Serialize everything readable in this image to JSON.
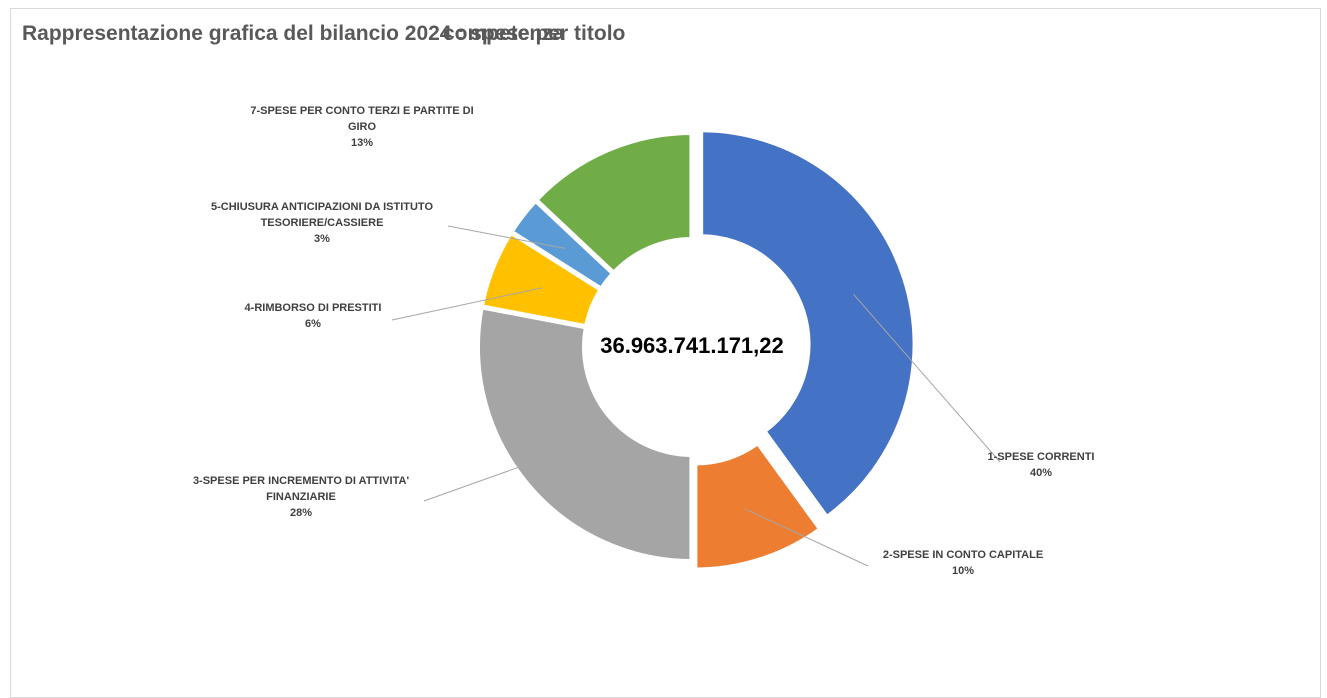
{
  "chart_data": {
    "type": "pie",
    "variant": "donut",
    "title_part1": "Rappresentazione grafica del bilancio 2024 : spese per titolo",
    "title_part2": "competenza",
    "center_total": "36.963.741.171,22",
    "series": [
      {
        "label_lines": [
          "1-SPESE CORRENTI"
        ],
        "percent_label": "40%",
        "value": 40,
        "color": "#4472c4",
        "exploded": true
      },
      {
        "label_lines": [
          "2-SPESE IN CONTO CAPITALE"
        ],
        "percent_label": "10%",
        "value": 10,
        "color": "#ed7d31",
        "exploded": true
      },
      {
        "label_lines": [
          "3-SPESE PER INCREMENTO DI ATTIVITA'",
          "FINANZIARIE"
        ],
        "percent_label": "28%",
        "value": 28,
        "color": "#a5a5a5",
        "exploded": false
      },
      {
        "label_lines": [
          "4-RIMBORSO DI PRESTITI"
        ],
        "percent_label": "6%",
        "value": 6,
        "color": "#ffc000",
        "exploded": false
      },
      {
        "label_lines": [
          "5-CHIUSURA ANTICIPAZIONI DA ISTITUTO",
          "TESORIERE/CASSIERE"
        ],
        "percent_label": "3%",
        "value": 3,
        "color": "#5b9bd5",
        "exploded": false
      },
      {
        "label_lines": [
          "7-SPESE PER CONTO TERZI E PARTITE DI",
          "GIRO"
        ],
        "percent_label": "13%",
        "value": 13,
        "color": "#70ad47",
        "exploded": false
      }
    ],
    "legend": "none",
    "colors": {
      "title": "#595959",
      "labels": "#404040",
      "leader_lines": "#a6a6a6"
    }
  }
}
